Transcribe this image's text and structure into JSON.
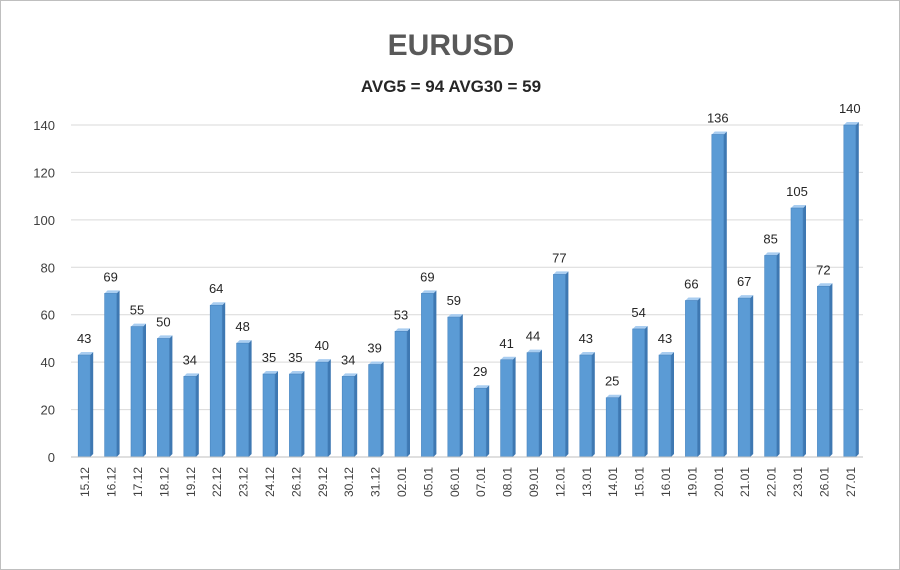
{
  "chart_data": {
    "type": "bar",
    "title": "EURUSD",
    "subtitle": "AVG5 = 94 AVG30 = 59",
    "categories": [
      "15.12",
      "16.12",
      "17.12",
      "18.12",
      "19.12",
      "22.12",
      "23.12",
      "24.12",
      "26.12",
      "29.12",
      "30.12",
      "31.12",
      "02.01",
      "05.01",
      "06.01",
      "07.01",
      "08.01",
      "09.01",
      "12.01",
      "13.01",
      "14.01",
      "15.01",
      "16.01",
      "19.01",
      "20.01",
      "21.01",
      "22.01",
      "23.01",
      "26.01",
      "27.01"
    ],
    "values": [
      43,
      69,
      55,
      50,
      34,
      64,
      48,
      35,
      35,
      40,
      34,
      39,
      53,
      69,
      59,
      29,
      41,
      44,
      77,
      43,
      25,
      54,
      43,
      66,
      136,
      67,
      85,
      105,
      72,
      140
    ],
    "ylim": [
      0,
      140
    ],
    "yticks": [
      0,
      20,
      40,
      60,
      80,
      100,
      120,
      140
    ],
    "grid": true,
    "legend": "none",
    "bar_color": "#5b9bd5",
    "bar_dark": "#3e78b2",
    "bar_light": "#a9cdf0"
  }
}
